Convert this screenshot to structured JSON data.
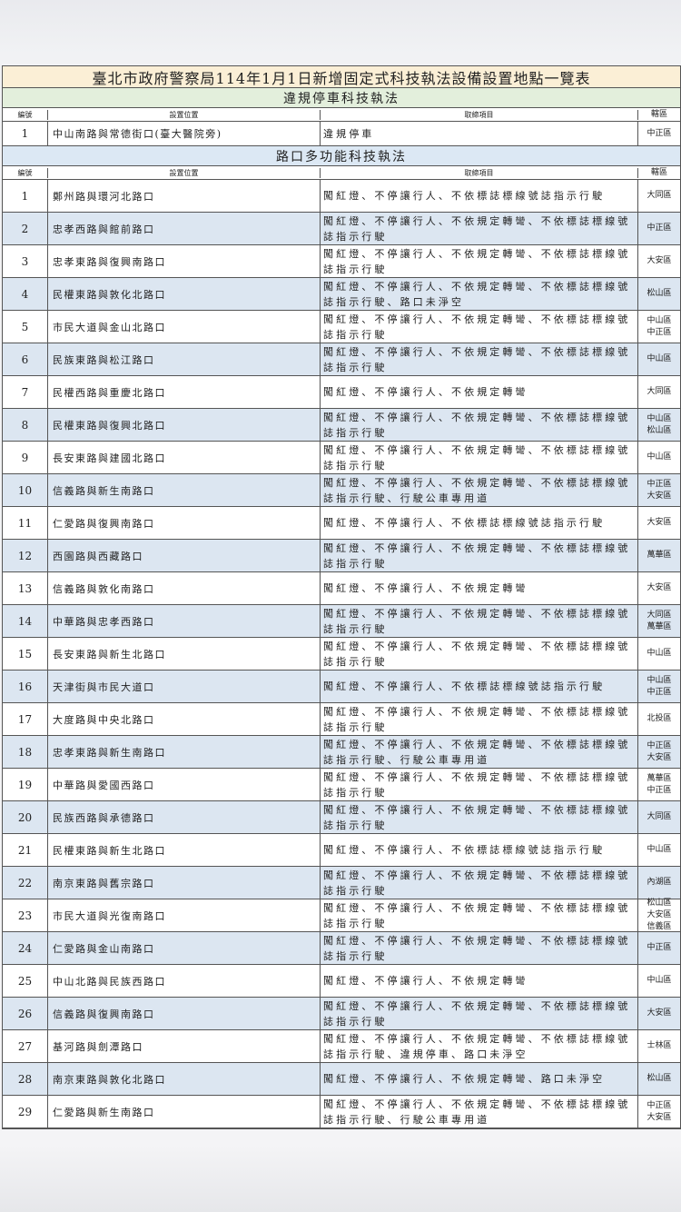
{
  "title": "臺北市政府警察局114年1月1日新增固定式科技執法設備設置地點一覽表",
  "headers": {
    "no": "編號",
    "location": "設置位置",
    "items": "取締項目",
    "district": "轄區"
  },
  "section1": {
    "title": "違規停車科技執法",
    "rows": [
      {
        "no": "1",
        "location": "中山南路與常德街口(臺大醫院旁)",
        "items": "違規停車",
        "district": [
          "中正區"
        ]
      }
    ]
  },
  "section2": {
    "title": "路口多功能科技執法",
    "rows": [
      {
        "no": "1",
        "location": "鄭州路與環河北路口",
        "items": "闖紅燈、不停讓行人、不依標誌標線號誌指示行駛",
        "district": [
          "大同區"
        ]
      },
      {
        "no": "2",
        "location": "忠孝西路與館前路口",
        "items": "闖紅燈、不停讓行人、不依規定轉彎、不依標誌標線號誌指示行駛",
        "district": [
          "中正區"
        ]
      },
      {
        "no": "3",
        "location": "忠孝東路與復興南路口",
        "items": "闖紅燈、不停讓行人、不依規定轉彎、不依標誌標線號誌指示行駛",
        "district": [
          "大安區"
        ]
      },
      {
        "no": "4",
        "location": "民權東路與敦化北路口",
        "items": "闖紅燈、不停讓行人、不依規定轉彎、不依標誌標線號誌指示行駛、路口未淨空",
        "district": [
          "松山區"
        ]
      },
      {
        "no": "5",
        "location": "市民大道與金山北路口",
        "items": "闖紅燈、不停讓行人、不依規定轉彎、不依標誌標線號誌指示行駛",
        "district": [
          "中山區",
          "中正區"
        ]
      },
      {
        "no": "6",
        "location": "民族東路與松江路口",
        "items": "闖紅燈、不停讓行人、不依規定轉彎、不依標誌標線號誌指示行駛",
        "district": [
          "中山區"
        ]
      },
      {
        "no": "7",
        "location": "民權西路與重慶北路口",
        "items": "闖紅燈、不停讓行人、不依規定轉彎",
        "district": [
          "大同區"
        ]
      },
      {
        "no": "8",
        "location": "民權東路與復興北路口",
        "items": "闖紅燈、不停讓行人、不依規定轉彎、不依標誌標線號誌指示行駛",
        "district": [
          "中山區",
          "松山區"
        ]
      },
      {
        "no": "9",
        "location": "長安東路與建國北路口",
        "items": "闖紅燈、不停讓行人、不依規定轉彎、不依標誌標線號誌指示行駛",
        "district": [
          "中山區"
        ]
      },
      {
        "no": "10",
        "location": "信義路與新生南路口",
        "items": "闖紅燈、不停讓行人、不依規定轉彎、不依標誌標線號誌指示行駛、行駛公車專用道",
        "district": [
          "中正區",
          "大安區"
        ]
      },
      {
        "no": "11",
        "location": "仁愛路與復興南路口",
        "items": "闖紅燈、不停讓行人、不依標誌標線號誌指示行駛",
        "district": [
          "大安區"
        ]
      },
      {
        "no": "12",
        "location": "西園路與西藏路口",
        "items": "闖紅燈、不停讓行人、不依規定轉彎、不依標誌標線號誌指示行駛",
        "district": [
          "萬華區"
        ]
      },
      {
        "no": "13",
        "location": "信義路與敦化南路口",
        "items": "闖紅燈、不停讓行人、不依規定轉彎",
        "district": [
          "大安區"
        ]
      },
      {
        "no": "14",
        "location": "中華路與忠孝西路口",
        "items": "闖紅燈、不停讓行人、不依規定轉彎、不依標誌標線號誌指示行駛",
        "district": [
          "大同區",
          "萬華區"
        ]
      },
      {
        "no": "15",
        "location": "長安東路與新生北路口",
        "items": "闖紅燈、不停讓行人、不依規定轉彎、不依標誌標線號誌指示行駛",
        "district": [
          "中山區"
        ]
      },
      {
        "no": "16",
        "location": "天津街與市民大道口",
        "items": "闖紅燈、不停讓行人、不依標誌標線號誌指示行駛",
        "district": [
          "中山區",
          "中正區"
        ]
      },
      {
        "no": "17",
        "location": "大度路與中央北路口",
        "items": "闖紅燈、不停讓行人、不依規定轉彎、不依標誌標線號誌指示行駛",
        "district": [
          "北投區"
        ]
      },
      {
        "no": "18",
        "location": "忠孝東路與新生南路口",
        "items": "闖紅燈、不停讓行人、不依規定轉彎、不依標誌標線號誌指示行駛、行駛公車專用道",
        "district": [
          "中正區",
          "大安區"
        ]
      },
      {
        "no": "19",
        "location": "中華路與愛國西路口",
        "items": "闖紅燈、不停讓行人、不依規定轉彎、不依標誌標線號誌指示行駛",
        "district": [
          "萬華區",
          "中正區"
        ]
      },
      {
        "no": "20",
        "location": "民族西路與承德路口",
        "items": "闖紅燈、不停讓行人、不依規定轉彎、不依標誌標線號誌指示行駛",
        "district": [
          "大同區"
        ]
      },
      {
        "no": "21",
        "location": "民權東路與新生北路口",
        "items": "闖紅燈、不停讓行人、不依標誌標線號誌指示行駛",
        "district": [
          "中山區"
        ]
      },
      {
        "no": "22",
        "location": "南京東路與舊宗路口",
        "items": "闖紅燈、不停讓行人、不依規定轉彎、不依標誌標線號誌指示行駛",
        "district": [
          "內湖區"
        ]
      },
      {
        "no": "23",
        "location": "市民大道與光復南路口",
        "items": "闖紅燈、不停讓行人、不依規定轉彎、不依標誌標線號誌指示行駛",
        "district": [
          "松山區",
          "大安區",
          "信義區"
        ]
      },
      {
        "no": "24",
        "location": "仁愛路與金山南路口",
        "items": "闖紅燈、不停讓行人、不依規定轉彎、不依標誌標線號誌指示行駛",
        "district": [
          "中正區"
        ]
      },
      {
        "no": "25",
        "location": "中山北路與民族西路口",
        "items": "闖紅燈、不停讓行人、不依規定轉彎",
        "district": [
          "中山區"
        ]
      },
      {
        "no": "26",
        "location": "信義路與復興南路口",
        "items": "闖紅燈、不停讓行人、不依規定轉彎、不依標誌標線號誌指示行駛",
        "district": [
          "大安區"
        ]
      },
      {
        "no": "27",
        "location": "基河路與劍潭路口",
        "items": "闖紅燈、不停讓行人、不依規定轉彎、不依標誌標線號誌指示行駛、違規停車、路口未淨空",
        "district": [
          "士林區"
        ]
      },
      {
        "no": "28",
        "location": "南京東路與敦化北路口",
        "items": "闖紅燈、不停讓行人、不依規定轉彎、路口未淨空",
        "district": [
          "松山區"
        ]
      },
      {
        "no": "29",
        "location": "仁愛路與新生南路口",
        "items": "闖紅燈、不停讓行人、不依規定轉彎、不依標誌標線號誌指示行駛、行駛公車專用道",
        "district": [
          "中正區",
          "大安區"
        ]
      }
    ]
  }
}
